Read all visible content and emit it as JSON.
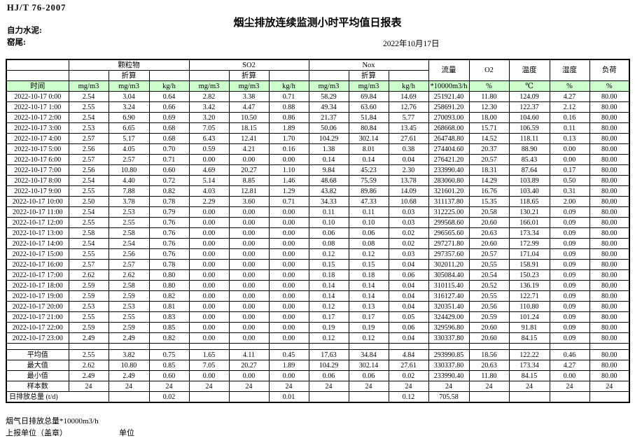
{
  "page": {
    "standard": "HJ/T 76-2007",
    "title": "烟尘排放连续监测小时平均值日报表",
    "company": "自力水泥:",
    "location": "窑尾:",
    "date": "2022年10月17日",
    "footer_total_flow": "烟气日排放总量*10000m3/h",
    "footer_report_unit": "上报单位（盖章）",
    "footer_unit": "单位"
  },
  "colors": {
    "header_green": "#ccffcc",
    "border": "#000000"
  },
  "table": {
    "time_header": "时间",
    "converted_label": "折算",
    "groups": [
      "颗粒物",
      "SO2",
      "Nox"
    ],
    "single_columns": [
      "流量",
      "O2",
      "温度",
      "湿度",
      "负荷"
    ],
    "units": [
      "mg/m3",
      "mg/m3",
      "kg/h",
      "mg/m3",
      "mg/m3",
      "kg/h",
      "mg/m3",
      "mg/m3",
      "kg/h",
      "*10000m3/h",
      "%",
      "℃",
      "%",
      "%"
    ],
    "rows": [
      {
        "time": "2022-10-17 0:00",
        "values": [
          "2.54",
          "3.04",
          "0.64",
          "2.82",
          "3.38",
          "0.71",
          "58.29",
          "69.84",
          "14.69",
          "251921.40",
          "11.80",
          "124.09",
          "4.27",
          "80.00"
        ]
      },
      {
        "time": "2022-10-17 1:00",
        "values": [
          "2.55",
          "3.24",
          "0.66",
          "3.42",
          "4.47",
          "0.88",
          "49.34",
          "63.60",
          "12.76",
          "258691.20",
          "12.30",
          "122.37",
          "2.12",
          "80.00"
        ]
      },
      {
        "time": "2022-10-17 2:00",
        "values": [
          "2.54",
          "6.90",
          "0.69",
          "3.20",
          "10.50",
          "0.86",
          "21.37",
          "51.84",
          "5.77",
          "270093.00",
          "18.00",
          "104.60",
          "0.16",
          "80.00"
        ]
      },
      {
        "time": "2022-10-17 3:00",
        "values": [
          "2.53",
          "6.65",
          "0.68",
          "7.05",
          "18.15",
          "1.89",
          "50.06",
          "80.84",
          "13.45",
          "268668.00",
          "15.71",
          "106.59",
          "0.11",
          "80.00"
        ]
      },
      {
        "time": "2022-10-17 4:00",
        "values": [
          "2.57",
          "5.17",
          "0.68",
          "6.43",
          "12.41",
          "1.70",
          "104.29",
          "302.14",
          "27.61",
          "264748.80",
          "14.52",
          "118.11",
          "0.13",
          "80.00"
        ]
      },
      {
        "time": "2022-10-17 5:00",
        "values": [
          "2.56",
          "4.05",
          "0.70",
          "0.59",
          "4.21",
          "0.16",
          "1.38",
          "8.01",
          "0.38",
          "274404.60",
          "20.37",
          "88.90",
          "0.00",
          "80.00"
        ]
      },
      {
        "time": "2022-10-17 6:00",
        "values": [
          "2.57",
          "2.57",
          "0.71",
          "0.00",
          "0.00",
          "0.00",
          "0.14",
          "0.14",
          "0.04",
          "276421.20",
          "20.57",
          "85.43",
          "0.00",
          "80.00"
        ]
      },
      {
        "time": "2022-10-17 7:00",
        "values": [
          "2.56",
          "10.80",
          "0.60",
          "4.69",
          "20.27",
          "1.10",
          "9.84",
          "45.23",
          "2.30",
          "233990.40",
          "18.31",
          "87.64",
          "0.17",
          "80.00"
        ]
      },
      {
        "time": "2022-10-17 8:00",
        "values": [
          "2.54",
          "4.40",
          "0.72",
          "5.14",
          "8.85",
          "1.46",
          "48.68",
          "75.59",
          "13.78",
          "283060.80",
          "14.29",
          "103.89",
          "0.50",
          "80.00"
        ]
      },
      {
        "time": "2022-10-17 9:00",
        "values": [
          "2.55",
          "7.88",
          "0.82",
          "4.03",
          "12.81",
          "1.29",
          "43.82",
          "89.86",
          "14.09",
          "321601.20",
          "16.76",
          "103.40",
          "0.31",
          "80.00"
        ]
      },
      {
        "time": "2022-10-17 10:00",
        "values": [
          "2.50",
          "3.78",
          "0.78",
          "2.29",
          "3.60",
          "0.71",
          "34.33",
          "47.33",
          "10.68",
          "311137.80",
          "15.35",
          "118.65",
          "2.00",
          "80.00"
        ]
      },
      {
        "time": "2022-10-17 11:00",
        "values": [
          "2.54",
          "2.53",
          "0.79",
          "0.00",
          "0.00",
          "0.00",
          "0.11",
          "0.11",
          "0.03",
          "312225.00",
          "20.58",
          "130.21",
          "0.09",
          "80.00"
        ]
      },
      {
        "time": "2022-10-17 12:00",
        "values": [
          "2.55",
          "2.55",
          "0.76",
          "0.00",
          "0.00",
          "0.00",
          "0.10",
          "0.10",
          "0.03",
          "299568.60",
          "20.60",
          "166.01",
          "0.09",
          "80.00"
        ]
      },
      {
        "time": "2022-10-17 13:00",
        "values": [
          "2.58",
          "2.58",
          "0.76",
          "0.00",
          "0.00",
          "0.00",
          "0.06",
          "0.06",
          "0.02",
          "296565.60",
          "20.63",
          "173.34",
          "0.09",
          "80.00"
        ]
      },
      {
        "time": "2022-10-17 14:00",
        "values": [
          "2.54",
          "2.54",
          "0.76",
          "0.00",
          "0.00",
          "0.00",
          "0.08",
          "0.08",
          "0.02",
          "297271.80",
          "20.60",
          "172.99",
          "0.09",
          "80.00"
        ]
      },
      {
        "time": "2022-10-17 15:00",
        "values": [
          "2.55",
          "2.56",
          "0.76",
          "0.00",
          "0.00",
          "0.00",
          "0.12",
          "0.12",
          "0.03",
          "297357.60",
          "20.57",
          "171.04",
          "0.09",
          "80.00"
        ]
      },
      {
        "time": "2022-10-17 16:00",
        "values": [
          "2.57",
          "2.57",
          "0.78",
          "0.00",
          "0.00",
          "0.00",
          "0.15",
          "0.15",
          "0.04",
          "302011.20",
          "20.55",
          "158.91",
          "0.09",
          "80.00"
        ]
      },
      {
        "time": "2022-10-17 17:00",
        "values": [
          "2.62",
          "2.62",
          "0.80",
          "0.00",
          "0.00",
          "0.00",
          "0.18",
          "0.18",
          "0.06",
          "305084.40",
          "20.54",
          "150.23",
          "0.09",
          "80.00"
        ]
      },
      {
        "time": "2022-10-17 18:00",
        "values": [
          "2.59",
          "2.58",
          "0.80",
          "0.00",
          "0.00",
          "0.00",
          "0.14",
          "0.14",
          "0.04",
          "310115.40",
          "20.52",
          "136.19",
          "0.09",
          "80.00"
        ]
      },
      {
        "time": "2022-10-17 19:00",
        "values": [
          "2.59",
          "2.59",
          "0.82",
          "0.00",
          "0.00",
          "0.00",
          "0.14",
          "0.14",
          "0.04",
          "316127.40",
          "20.55",
          "122.71",
          "0.09",
          "80.00"
        ]
      },
      {
        "time": "2022-10-17 20:00",
        "values": [
          "2.53",
          "2.53",
          "0.81",
          "0.00",
          "0.00",
          "0.00",
          "0.12",
          "0.13",
          "0.04",
          "320351.40",
          "20.56",
          "110.80",
          "0.09",
          "80.00"
        ]
      },
      {
        "time": "2022-10-17 21:00",
        "values": [
          "2.55",
          "2.55",
          "0.83",
          "0.00",
          "0.00",
          "0.00",
          "0.17",
          "0.17",
          "0.05",
          "324429.00",
          "20.59",
          "101.24",
          "0.09",
          "80.00"
        ]
      },
      {
        "time": "2022-10-17 22:00",
        "values": [
          "2.59",
          "2.59",
          "0.85",
          "0.00",
          "0.00",
          "0.00",
          "0.19",
          "0.19",
          "0.06",
          "329596.80",
          "20.60",
          "91.81",
          "0.09",
          "80.00"
        ]
      },
      {
        "time": "2022-10-17 23:00",
        "values": [
          "2.49",
          "2.49",
          "0.82",
          "0.00",
          "0.00",
          "0.00",
          "0.12",
          "0.12",
          "0.04",
          "330337.80",
          "20.60",
          "84.15",
          "0.09",
          "80.00"
        ]
      }
    ],
    "summary": [
      {
        "label": "平均值",
        "values": [
          "2.55",
          "3.82",
          "0.75",
          "1.65",
          "4.11",
          "0.45",
          "17.63",
          "34.84",
          "4.84",
          "293990.85",
          "18.56",
          "122.22",
          "0.46",
          "80.00"
        ]
      },
      {
        "label": "最大值",
        "values": [
          "2.62",
          "10.80",
          "0.85",
          "7.05",
          "20.27",
          "1.89",
          "104.29",
          "302.14",
          "27.61",
          "330337.80",
          "20.63",
          "173.34",
          "4.27",
          "80.00"
        ]
      },
      {
        "label": "最小值",
        "values": [
          "2.49",
          "2.49",
          "0.60",
          "0.00",
          "0.00",
          "0.00",
          "0.06",
          "0.06",
          "0.02",
          "233990.40",
          "11.80",
          "84.15",
          "0.00",
          "80.00"
        ]
      },
      {
        "label": "样本数",
        "values": [
          "24",
          "24",
          "24",
          "24",
          "24",
          "24",
          "24",
          "24",
          "24",
          "24",
          "24",
          "24",
          "24",
          "24"
        ]
      }
    ],
    "daily_total": {
      "label": "日排放总量 (t/d)",
      "values": [
        "",
        "0.02",
        "",
        "",
        "0.01",
        "",
        "",
        "0.12",
        "705.58",
        "",
        "",
        "",
        ""
      ]
    }
  }
}
